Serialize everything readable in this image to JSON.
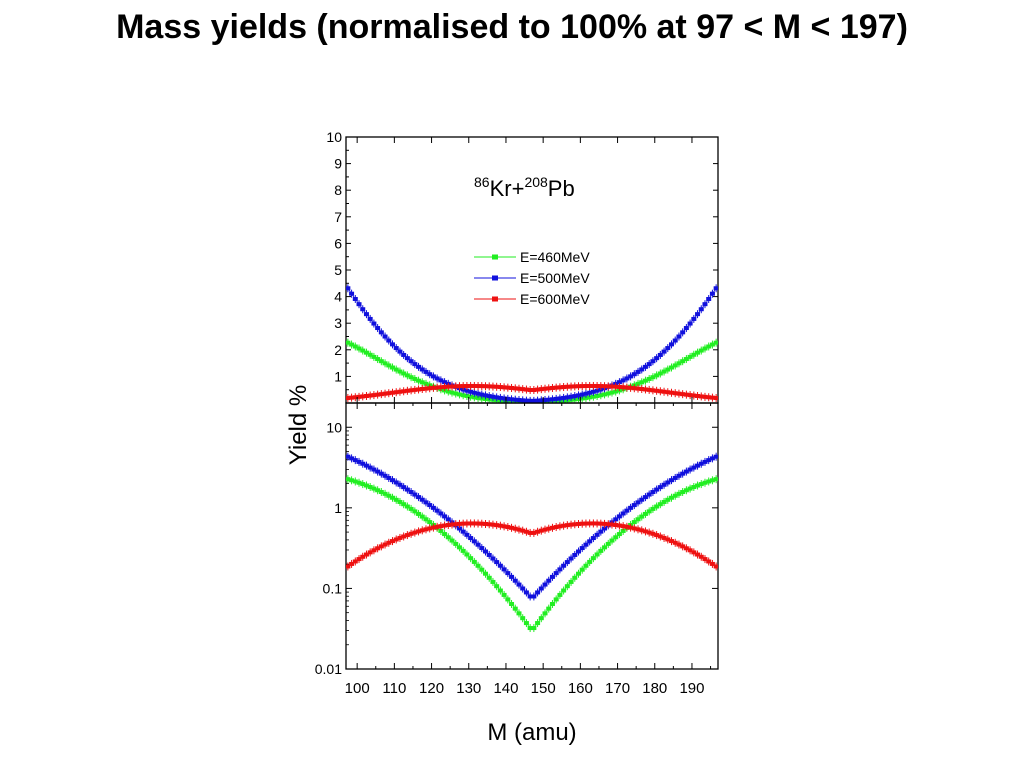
{
  "title": "Mass yields (normalised to 100% at 97 < M < 197)",
  "chart_data": [
    {
      "type": "scatter",
      "panel": "top",
      "scale": "linear",
      "xlim": [
        97,
        197
      ],
      "ylim": [
        0,
        10
      ],
      "yticks": [
        "1",
        "2",
        "3",
        "4",
        "5",
        "6",
        "7",
        "8",
        "9",
        "10"
      ],
      "ytick_values": [
        1,
        2,
        3,
        4,
        5,
        6,
        7,
        8,
        9,
        10
      ],
      "annotation": {
        "pre1": "86",
        "mid1": "Kr+",
        "pre2": "208",
        "mid2": "Pb"
      },
      "legend_position": "upper-center",
      "series": [
        {
          "name": "E=460MeV",
          "color": "#22ee22",
          "model": {
            "min_mass": 147,
            "min_yield": 0.03,
            "slope": 0.0627,
            "curv": 0.0005
          }
        },
        {
          "name": "E=500MeV",
          "color": "#1111dd",
          "model": {
            "min_mass": 147,
            "min_yield": 0.075,
            "slope": 0.0504,
            "curv": 0.0003
          }
        },
        {
          "name": "E=600MeV",
          "color": "#ee1111",
          "model": {
            "min_mass": 147,
            "min_yield": 0.48,
            "slope": 0.0155,
            "curv": 0.00048
          }
        }
      ]
    },
    {
      "type": "scatter",
      "panel": "bottom",
      "scale": "log",
      "xlim": [
        97,
        197
      ],
      "ylim": [
        0.01,
        20
      ],
      "yticks": [
        "0.01",
        "0.1",
        "1",
        "10"
      ],
      "ytick_values": [
        0.01,
        0.1,
        1,
        10
      ],
      "xlabel": "M (amu)",
      "ylabel": "Yield %",
      "xticks": [
        "100",
        "110",
        "120",
        "130",
        "140",
        "150",
        "160",
        "170",
        "180",
        "190"
      ],
      "xtick_values": [
        100,
        110,
        120,
        130,
        140,
        150,
        160,
        170,
        180,
        190
      ],
      "series_ref": "same as top panel"
    }
  ]
}
